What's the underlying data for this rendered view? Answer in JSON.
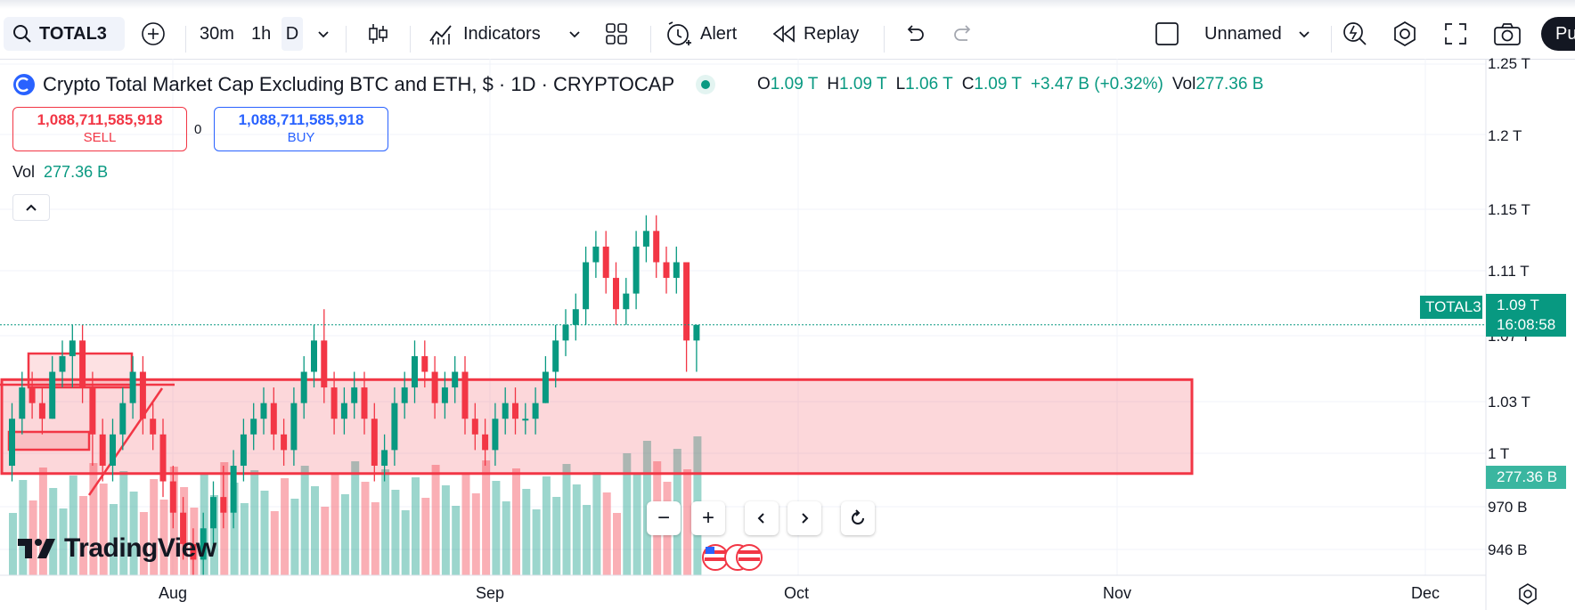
{
  "toolbar": {
    "symbol": "TOTAL3",
    "intervals": [
      "30m",
      "1h",
      "D"
    ],
    "indicators_label": "Indicators",
    "alert_label": "Alert",
    "replay_label": "Replay",
    "layout_name": "Unnamed",
    "publish_label": "Pu"
  },
  "legend": {
    "title": "Crypto Total Market Cap Excluding BTC and ETH, $ · 1D · CRYPTOCAP",
    "o_label": "O",
    "o_value": "1.09 T",
    "h_label": "H",
    "h_value": "1.09 T",
    "l_label": "L",
    "l_value": "1.06 T",
    "c_label": "C",
    "c_value": "1.09 T",
    "change": "+3.47 B (+0.32%)",
    "vol_label": "Vol",
    "vol_value": "277.36 B"
  },
  "trade": {
    "sell_price": "1,088,711,585,918",
    "sell_label": "SELL",
    "spread": "0",
    "buy_price": "1,088,711,585,918",
    "buy_label": "BUY"
  },
  "volume_legend": {
    "label": "Vol",
    "value": "277.36 B"
  },
  "price_axis": [
    "1.25 T",
    "1.2 T",
    "1.15 T",
    "1.11 T",
    "1.07 T",
    "1.03 T",
    "1 T",
    "970 B",
    "946 B"
  ],
  "time_axis": [
    "Aug",
    "Sep",
    "Oct",
    "Nov",
    "Dec"
  ],
  "last_price": {
    "symbol": "TOTAL3",
    "price": "1.09 T",
    "countdown": "16:08:58",
    "volume": "277.36 B"
  },
  "brand": "TradingView",
  "colors": {
    "up": "#089981",
    "down": "#f23645",
    "accent": "#2962ff",
    "zone": "#f23645"
  },
  "chart_data": {
    "type": "candlestick",
    "price_range": [
      0.93,
      1.26
    ],
    "timeframe": "1D",
    "candles": [
      [
        1.0,
        1.04,
        0.99,
        1.03
      ],
      [
        1.03,
        1.06,
        1.02,
        1.05
      ],
      [
        1.05,
        1.06,
        1.03,
        1.04
      ],
      [
        1.04,
        1.05,
        1.02,
        1.03
      ],
      [
        1.03,
        1.07,
        1.03,
        1.06
      ],
      [
        1.06,
        1.08,
        1.05,
        1.07
      ],
      [
        1.07,
        1.09,
        1.05,
        1.08
      ],
      [
        1.08,
        1.09,
        1.04,
        1.05
      ],
      [
        1.05,
        1.06,
        1.0,
        1.02
      ],
      [
        1.02,
        1.03,
        0.99,
        1.0
      ],
      [
        1.0,
        1.03,
        0.99,
        1.02
      ],
      [
        1.02,
        1.05,
        1.01,
        1.04
      ],
      [
        1.04,
        1.07,
        1.03,
        1.06
      ],
      [
        1.06,
        1.07,
        1.02,
        1.03
      ],
      [
        1.03,
        1.04,
        1.01,
        1.02
      ],
      [
        1.02,
        1.03,
        0.98,
        0.99
      ],
      [
        0.99,
        1.0,
        0.96,
        0.97
      ],
      [
        0.97,
        0.98,
        0.94,
        0.95
      ],
      [
        0.95,
        0.96,
        0.93,
        0.94
      ],
      [
        0.94,
        0.97,
        0.93,
        0.96
      ],
      [
        0.96,
        0.99,
        0.95,
        0.98
      ],
      [
        0.98,
        1.0,
        0.96,
        0.97
      ],
      [
        0.97,
        1.01,
        0.96,
        1.0
      ],
      [
        1.0,
        1.03,
        0.99,
        1.02
      ],
      [
        1.02,
        1.04,
        1.01,
        1.03
      ],
      [
        1.03,
        1.05,
        1.02,
        1.04
      ],
      [
        1.04,
        1.05,
        1.01,
        1.02
      ],
      [
        1.02,
        1.03,
        1.0,
        1.01
      ],
      [
        1.01,
        1.05,
        1.0,
        1.04
      ],
      [
        1.04,
        1.07,
        1.03,
        1.06
      ],
      [
        1.06,
        1.09,
        1.05,
        1.08
      ],
      [
        1.08,
        1.1,
        1.04,
        1.05
      ],
      [
        1.05,
        1.06,
        1.02,
        1.03
      ],
      [
        1.03,
        1.05,
        1.02,
        1.04
      ],
      [
        1.04,
        1.06,
        1.03,
        1.05
      ],
      [
        1.05,
        1.06,
        1.02,
        1.03
      ],
      [
        1.03,
        1.04,
        0.99,
        1.0
      ],
      [
        1.0,
        1.02,
        0.99,
        1.01
      ],
      [
        1.01,
        1.05,
        1.0,
        1.04
      ],
      [
        1.04,
        1.06,
        1.03,
        1.05
      ],
      [
        1.05,
        1.08,
        1.04,
        1.07
      ],
      [
        1.07,
        1.08,
        1.05,
        1.06
      ],
      [
        1.06,
        1.07,
        1.03,
        1.04
      ],
      [
        1.04,
        1.06,
        1.03,
        1.05
      ],
      [
        1.05,
        1.07,
        1.04,
        1.06
      ],
      [
        1.06,
        1.07,
        1.02,
        1.03
      ],
      [
        1.03,
        1.04,
        1.01,
        1.02
      ],
      [
        1.02,
        1.03,
        1.0,
        1.01
      ],
      [
        1.01,
        1.04,
        1.0,
        1.03
      ],
      [
        1.03,
        1.05,
        1.02,
        1.04
      ],
      [
        1.04,
        1.05,
        1.02,
        1.03
      ],
      [
        1.03,
        1.04,
        1.02,
        1.03
      ],
      [
        1.03,
        1.05,
        1.02,
        1.04
      ],
      [
        1.04,
        1.07,
        1.04,
        1.06
      ],
      [
        1.06,
        1.09,
        1.05,
        1.08
      ],
      [
        1.08,
        1.1,
        1.07,
        1.09
      ],
      [
        1.09,
        1.11,
        1.08,
        1.1
      ],
      [
        1.1,
        1.14,
        1.09,
        1.13
      ],
      [
        1.13,
        1.15,
        1.12,
        1.14
      ],
      [
        1.14,
        1.15,
        1.11,
        1.12
      ],
      [
        1.12,
        1.13,
        1.09,
        1.1
      ],
      [
        1.1,
        1.12,
        1.09,
        1.11
      ],
      [
        1.11,
        1.15,
        1.1,
        1.14
      ],
      [
        1.14,
        1.16,
        1.13,
        1.15
      ],
      [
        1.15,
        1.16,
        1.12,
        1.13
      ],
      [
        1.13,
        1.14,
        1.11,
        1.12
      ],
      [
        1.12,
        1.14,
        1.11,
        1.13
      ],
      [
        1.13,
        1.13,
        1.06,
        1.08
      ],
      [
        1.08,
        1.09,
        1.06,
        1.09
      ]
    ],
    "zone": {
      "top": 1.055,
      "bottom": 0.995,
      "label": ""
    },
    "current_price": 1.09
  }
}
